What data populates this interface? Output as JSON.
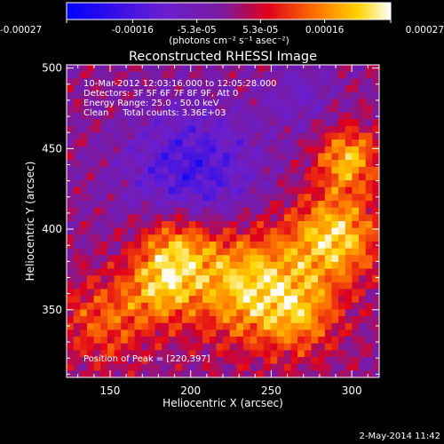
{
  "chart_data": {
    "type": "heatmap",
    "title": "Reconstructed RHESSI Image",
    "xlabel": "Heliocentric X (arcsec)",
    "ylabel": "Heliocentric Y (arcsec)",
    "xlim": [
      123,
      317
    ],
    "ylim": [
      308,
      502
    ],
    "x_ticks": [
      150,
      200,
      250,
      300
    ],
    "y_ticks": [
      350,
      400,
      450,
      500
    ],
    "colorbar": {
      "range": [
        -0.00027,
        0.00027
      ],
      "tick_values": [
        -0.00027,
        -0.00016,
        -5.3e-05,
        5.3e-05,
        0.00016,
        0.00027
      ],
      "tick_labels": [
        "-0.00027",
        "-0.00016",
        "-5.3e-05",
        "5.3e-05",
        "0.00016",
        "0.00027"
      ],
      "unit_label": "(photons cm⁻² s⁻¹ asec⁻²)"
    },
    "annotations": [
      "10-Mar-2012 12:03:16.000 to 12:05:28.000",
      "Detectors: 3F 5F 6F 7F 8F 9F, Att 0",
      "Energy Range: 25.0 - 50.0 keV",
      "Clean     Total counts: 3.36E+03"
    ],
    "peak_label": "Position of Peak = [220,397]",
    "peak": [
      220,
      397
    ],
    "footer_date": "2-May-2014 11:42",
    "colormap": [
      "#0000ff",
      "#8a2be2",
      "#ff0000",
      "#ff8c00",
      "#ffff00",
      "#ffffff"
    ]
  }
}
